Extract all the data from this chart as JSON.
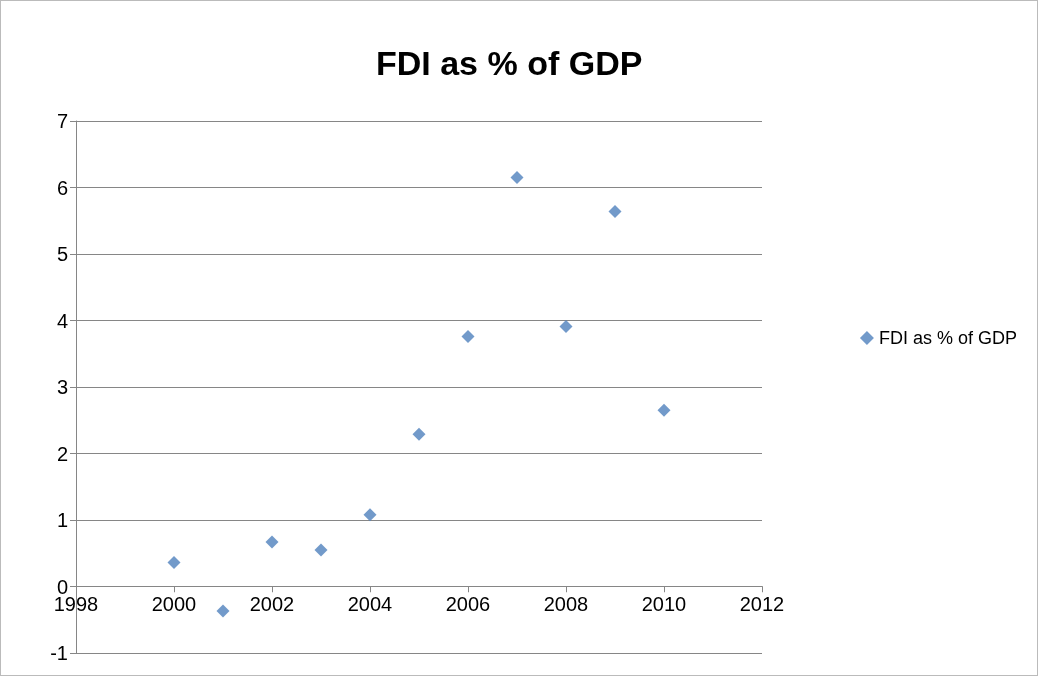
{
  "chart_data": {
    "type": "scatter",
    "title": "FDI as % of GDP",
    "x": [
      2000,
      2001,
      2002,
      2003,
      2004,
      2005,
      2006,
      2007,
      2008,
      2009,
      2010
    ],
    "series": [
      {
        "name": "FDI as % of GDP",
        "color": "#4f81bd",
        "values": [
          0.36,
          -0.37,
          0.67,
          0.55,
          1.08,
          2.29,
          3.76,
          6.15,
          3.91,
          5.64,
          2.65
        ]
      }
    ],
    "xlim": [
      1998,
      2012
    ],
    "xticks": [
      1998,
      2000,
      2002,
      2004,
      2006,
      2008,
      2010,
      2012
    ],
    "ylim": [
      -1,
      7
    ],
    "yticks": [
      -1,
      0,
      1,
      2,
      3,
      4,
      5,
      6,
      7
    ],
    "grid": "y",
    "legend": "right",
    "marker": "diamond"
  }
}
